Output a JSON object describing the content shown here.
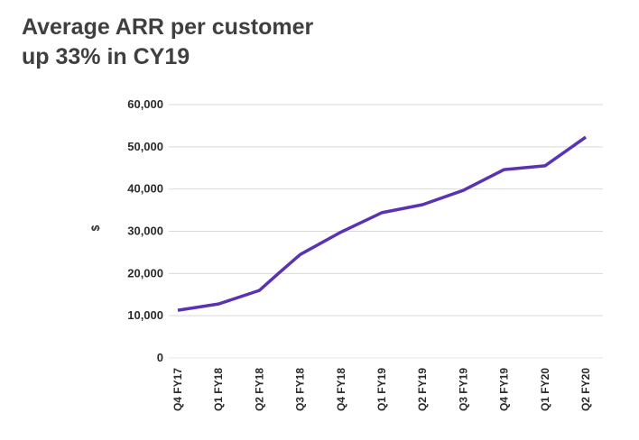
{
  "header": {
    "title_line1": "Average ARR per customer",
    "title_line2": "up 33% in CY19"
  },
  "chart_data": {
    "type": "line",
    "title": "Average ARR per customer up 33% in CY19",
    "xlabel": "",
    "ylabel": "$",
    "categories": [
      "Q4 FY17",
      "Q1 FY18",
      "Q2 FY18",
      "Q3 FY18",
      "Q4 FY18",
      "Q1 FY19",
      "Q2 FY19",
      "Q3 FY19",
      "Q4 FY19",
      "Q1 FY20",
      "Q2 FY20"
    ],
    "ylim": [
      0,
      60000
    ],
    "yticks": [
      0,
      10000,
      20000,
      30000,
      40000,
      50000,
      60000
    ],
    "ytick_labels": [
      "0",
      "10,000",
      "20,000",
      "30,000",
      "40,000",
      "50,000",
      "60,000"
    ],
    "grid": true,
    "series": [
      {
        "color": "#5b32b4",
        "points": [
          {
            "x": 0,
            "y": 11300
          },
          {
            "x": 1,
            "y": 12800
          },
          {
            "x": 2,
            "y": 16000
          },
          {
            "x": 2.5,
            "y": 20300
          },
          {
            "x": 3,
            "y": 24500
          },
          {
            "x": 4,
            "y": 29800
          },
          {
            "x": 5,
            "y": 34400
          },
          {
            "x": 6,
            "y": 36300
          },
          {
            "x": 7,
            "y": 39700
          },
          {
            "x": 8,
            "y": 44600
          },
          {
            "x": 9,
            "y": 45500
          },
          {
            "x": 10,
            "y": 52300
          }
        ]
      }
    ],
    "colors": {
      "line": "#5b32b4",
      "grid": "#d9d9d9",
      "text": "#2b2b2b"
    }
  }
}
